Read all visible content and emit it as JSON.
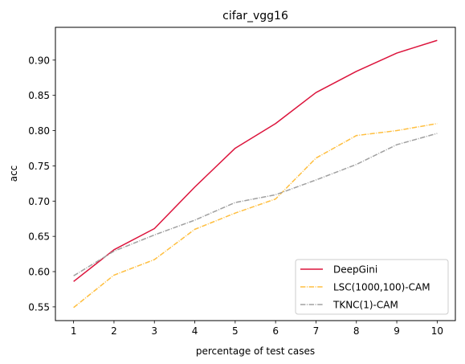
{
  "chart_data": {
    "type": "line",
    "title": "cifar_vgg16",
    "xlabel": "percentage of test cases",
    "ylabel": "acc",
    "x": [
      1,
      2,
      3,
      4,
      5,
      6,
      7,
      8,
      9,
      10
    ],
    "xlim": [
      0.55,
      10.45
    ],
    "ylim": [
      0.5305,
      0.9465
    ],
    "xticks": [
      1,
      2,
      3,
      4,
      5,
      6,
      7,
      8,
      9,
      10
    ],
    "xtick_labels": [
      "1",
      "2",
      "3",
      "4",
      "5",
      "6",
      "7",
      "8",
      "9",
      "10"
    ],
    "yticks": [
      0.55,
      0.6,
      0.65,
      0.7,
      0.75,
      0.8,
      0.85,
      0.9
    ],
    "ytick_labels": [
      "0.55",
      "0.60",
      "0.65",
      "0.70",
      "0.75",
      "0.80",
      "0.85",
      "0.90"
    ],
    "grid": false,
    "legend_position": "lower-right",
    "series": [
      {
        "name": "DeepGini",
        "color": "#dc143c",
        "linestyle": "solid",
        "values": [
          0.586,
          0.631,
          0.661,
          0.72,
          0.775,
          0.81,
          0.854,
          0.884,
          0.91,
          0.928
        ]
      },
      {
        "name": "LSC(1000,100)-CAM",
        "color": "#ffbf40",
        "linestyle": "dashdot",
        "values": [
          0.549,
          0.595,
          0.617,
          0.66,
          0.683,
          0.703,
          0.761,
          0.793,
          0.8,
          0.81
        ]
      },
      {
        "name": "TKNC(1)-CAM",
        "color": "#a0a0a0",
        "linestyle": "dashdot",
        "values": [
          0.594,
          0.629,
          0.652,
          0.673,
          0.698,
          0.709,
          0.73,
          0.752,
          0.78,
          0.796
        ]
      }
    ]
  }
}
